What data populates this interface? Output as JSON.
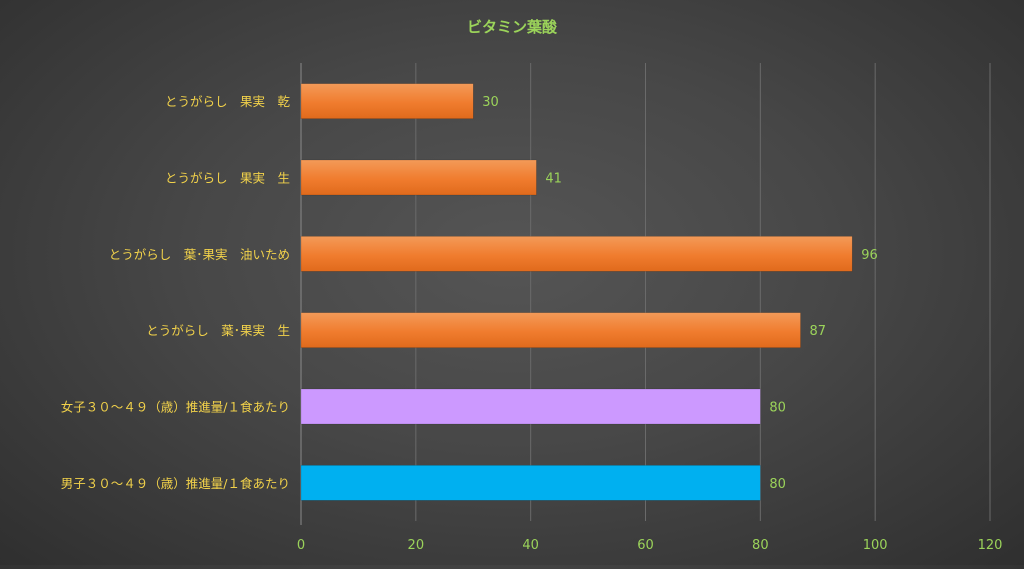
{
  "chart_data": {
    "type": "bar",
    "orientation": "horizontal",
    "title": "ビタミン葉酸",
    "categories": [
      "とうがらし　果実　乾",
      "とうがらし　果実　生",
      "とうがらし　葉･果実　油いため",
      "とうがらし　葉･果実　生",
      "女子３０～４９（歳）推進量/１食あたり",
      "男子３０～４９（歳）推進量/１食あたり"
    ],
    "values": [
      30,
      41,
      96,
      87,
      80,
      80
    ],
    "bar_colors": [
      "#f07c2e",
      "#f07c2e",
      "#f07c2e",
      "#f07c2e",
      "#cc99ff",
      "#00b0f0"
    ],
    "xlim": [
      0,
      120
    ],
    "xticks": [
      0,
      20,
      40,
      60,
      80,
      100,
      120
    ],
    "xtick_labels": [
      "0",
      "20",
      "40",
      "60",
      "80",
      "100",
      "120"
    ],
    "grid": true,
    "data_labels": true,
    "colors": {
      "title": "#9bd35a",
      "category_labels": "#f2d24a",
      "tick_labels": "#9bd35a",
      "gridlines": "#6a6a6a"
    }
  }
}
